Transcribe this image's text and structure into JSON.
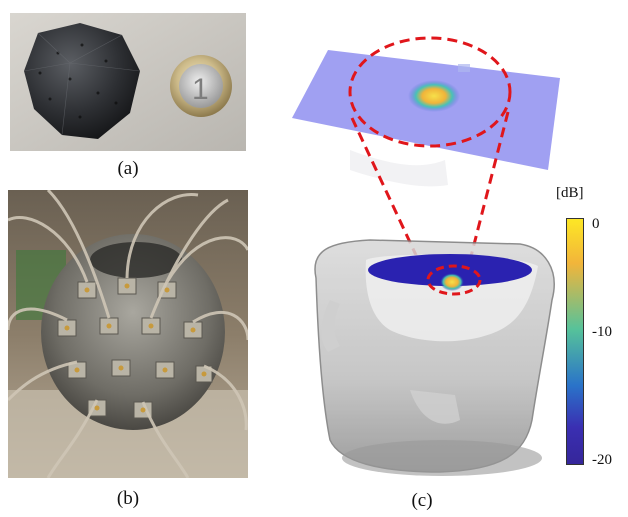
{
  "captions": {
    "a": "(a)",
    "b": "(b)",
    "c": "(c)"
  },
  "colorbar": {
    "unit": "[dB]",
    "ticks": [
      "0",
      "-10",
      "-20"
    ],
    "colors": [
      "#fde725",
      "#f2b53a",
      "#3fbfb3",
      "#2a73c9",
      "#3a2fb2"
    ]
  },
  "coin": {
    "denomination": "1"
  }
}
